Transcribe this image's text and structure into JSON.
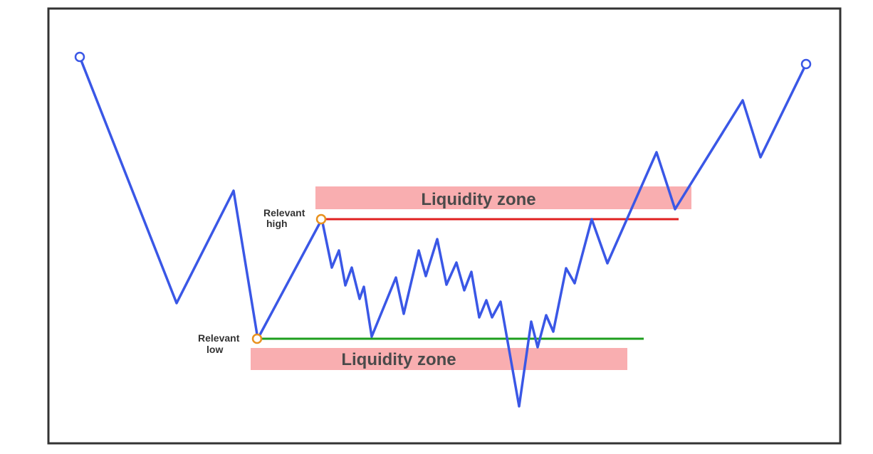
{
  "zones": {
    "upper": {
      "label": "Liquidity zone"
    },
    "lower": {
      "label": "Liquidity zone"
    }
  },
  "levels": {
    "high": {
      "label_line1": "Relevant",
      "label_line2": "high"
    },
    "low": {
      "label_line1": "Relevant",
      "label_line2": "low"
    }
  },
  "colors": {
    "price_line": "#3a57e6",
    "zone_fill": "#f9aeb0",
    "high_line": "#e02020",
    "low_line": "#1e9e1e",
    "marker": "#e8921f",
    "frame": "#333333"
  }
}
